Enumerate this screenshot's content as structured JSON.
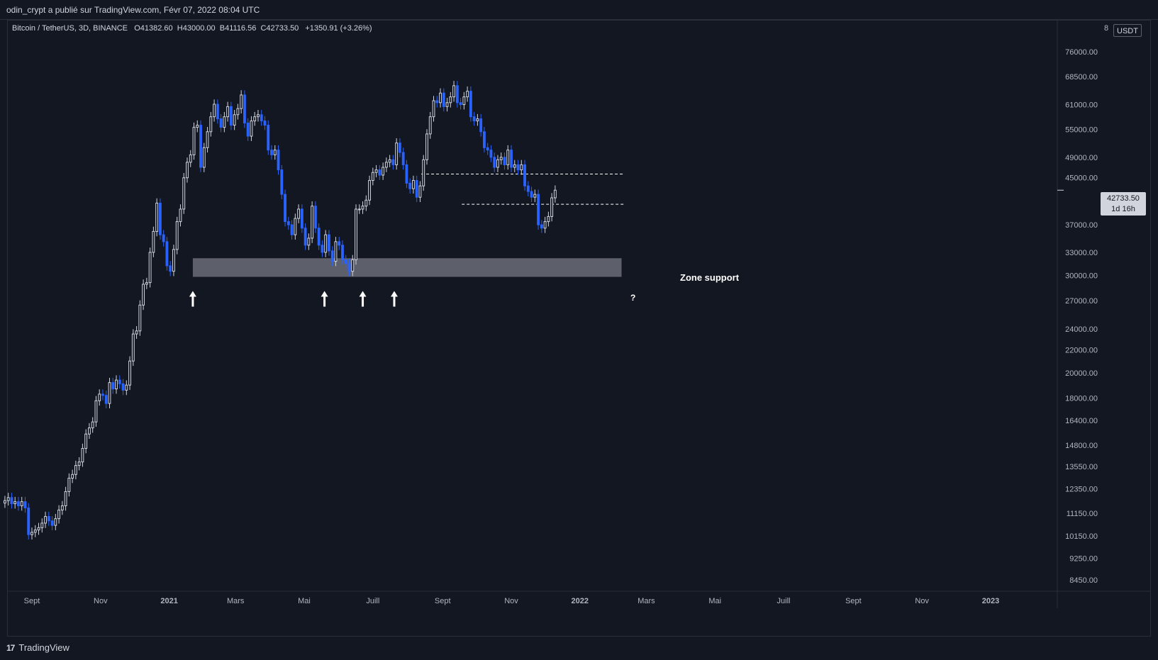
{
  "header": {
    "publish_line": "odin_crypt a publié sur TradingView.com, Févr 07, 2022 08:04 UTC"
  },
  "legend": {
    "symbol": "Bitcoin / TetherUS, 3D, BINANCE",
    "open_label": "O",
    "open": "41382.60",
    "high_label": "H",
    "high": "43000.00",
    "low_label": "B",
    "low": "41116.56",
    "close_label": "C",
    "close": "42733.50",
    "change": "+1350.91 (+3.26%)"
  },
  "price_axis": {
    "unit": "USDT",
    "top_clip": "8",
    "last_price": "42733.50",
    "countdown": "1d 16h"
  },
  "annotations": {
    "zone_label": "Zone support",
    "question_mark": "?",
    "arrow_icon": "arrow-up-icon"
  },
  "branding": {
    "logo_text": "TradingView",
    "logo_mark": "17"
  },
  "colors": {
    "background": "#131722",
    "up_candle": "#d1d4dc",
    "down_candle": "#2962ff",
    "zone_fill": "#5d606b",
    "grid": "#1e222d",
    "axis_text": "#b2b5be"
  },
  "chart_data": {
    "type": "candlestick",
    "title": "Bitcoin / TetherUS, 3D, BINANCE",
    "xlabel": "",
    "ylabel": "",
    "y_scale": "log",
    "ylim": [
      8000,
      80000
    ],
    "grid": false,
    "y_ticks": [
      76000,
      68500,
      61000,
      55000,
      49000,
      45000,
      37000,
      33000,
      30000,
      27000,
      24000,
      22000,
      20000,
      18000,
      16400,
      14800,
      13550,
      12350,
      11150,
      10150,
      9250,
      8450
    ],
    "y_tick_labels": [
      "76000.00",
      "68500.00",
      "61000.00",
      "55000.00",
      "49000.00",
      "45000.00",
      "37000.00",
      "33000.00",
      "30000.00",
      "27000.00",
      "24000.00",
      "22000.00",
      "20000.00",
      "18000.00",
      "16400.00",
      "14800.00",
      "13550.00",
      "12350.00",
      "11150.00",
      "10150.00",
      "9250.00",
      "8450.00"
    ],
    "x_ticks": [
      {
        "date": "2020-09-01",
        "label": "Sept",
        "bold": false
      },
      {
        "date": "2020-11-01",
        "label": "Nov",
        "bold": false
      },
      {
        "date": "2021-01-01",
        "label": "2021",
        "bold": true
      },
      {
        "date": "2021-03-01",
        "label": "Mars",
        "bold": false
      },
      {
        "date": "2021-05-01",
        "label": "Mai",
        "bold": false
      },
      {
        "date": "2021-07-01",
        "label": "Juill",
        "bold": false
      },
      {
        "date": "2021-09-01",
        "label": "Sept",
        "bold": false
      },
      {
        "date": "2021-11-01",
        "label": "Nov",
        "bold": false
      },
      {
        "date": "2022-01-01",
        "label": "2022",
        "bold": true
      },
      {
        "date": "2022-03-01",
        "label": "Mars",
        "bold": false
      },
      {
        "date": "2022-05-01",
        "label": "Mai",
        "bold": false
      },
      {
        "date": "2022-07-01",
        "label": "Juill",
        "bold": false
      },
      {
        "date": "2022-09-01",
        "label": "Sept",
        "bold": false
      },
      {
        "date": "2022-11-01",
        "label": "Nov",
        "bold": false
      },
      {
        "date": "2023-01-01",
        "label": "2023",
        "bold": true
      }
    ],
    "support_zone": {
      "start": "2021-01-22",
      "end": "2022-02-07",
      "low": 29800,
      "high": 32200
    },
    "resistance_lines": [
      {
        "start": "2021-08-13",
        "end": "2022-02-09",
        "price": 45700
      },
      {
        "start": "2021-09-18",
        "end": "2022-02-09",
        "price": 40300
      }
    ],
    "support_arrows": [
      {
        "date": "2021-01-22"
      },
      {
        "date": "2021-05-19"
      },
      {
        "date": "2021-06-22"
      },
      {
        "date": "2021-07-20"
      }
    ],
    "question_date": "2022-01-24",
    "series": [
      {
        "interval_days": 3,
        "start": "2020-08-08",
        "closes": [
          11750,
          11900,
          11600,
          11700,
          11500,
          11700,
          11400,
          10200,
          10300,
          10400,
          10500,
          10700,
          11000,
          10800,
          10600,
          10900,
          11300,
          11500,
          12200,
          12900,
          13100,
          13600,
          13800,
          14600,
          15500,
          15900,
          16300,
          17800,
          18300,
          18200,
          17600,
          19200,
          18700,
          19400,
          19100,
          18600,
          19000,
          21000,
          23500,
          23800,
          26500,
          28900,
          29100,
          33000,
          36000,
          40500,
          35500,
          34500,
          31200,
          30500,
          33400,
          37500,
          39500,
          45000,
          48000,
          49500,
          55500,
          56000,
          47000,
          51000,
          54500,
          58000,
          61100,
          57500,
          55500,
          58000,
          60500,
          56000,
          58500,
          60000,
          63500,
          56500,
          53500,
          57000,
          58000,
          58500,
          57000,
          56000,
          50500,
          49500,
          50500,
          46500,
          42000,
          37500,
          37000,
          35500,
          38000,
          39500,
          36500,
          34000,
          35000,
          40000,
          36500,
          34000,
          33000,
          35500,
          33200,
          31800,
          34500,
          34000,
          32000,
          31500,
          30500,
          32000,
          39500,
          39500,
          40000,
          41000,
          44500,
          46000,
          46500,
          45500,
          47000,
          48000,
          48500,
          47500,
          52000,
          50000,
          47500,
          44000,
          43000,
          44500,
          41500,
          43500,
          48500,
          54000,
          58000,
          62000,
          61500,
          64000,
          60500,
          61500,
          63000,
          66000,
          61500,
          61000,
          63000,
          64500,
          58000,
          57000,
          57500,
          54500,
          51000,
          50500,
          49000,
          47000,
          48500,
          49000,
          47500,
          50500,
          47000,
          47500,
          46500,
          47500,
          43500,
          42500,
          41500,
          42000,
          37000,
          36500,
          37500,
          38300,
          41400,
          42733
        ]
      }
    ],
    "last_price": 42733.5
  }
}
